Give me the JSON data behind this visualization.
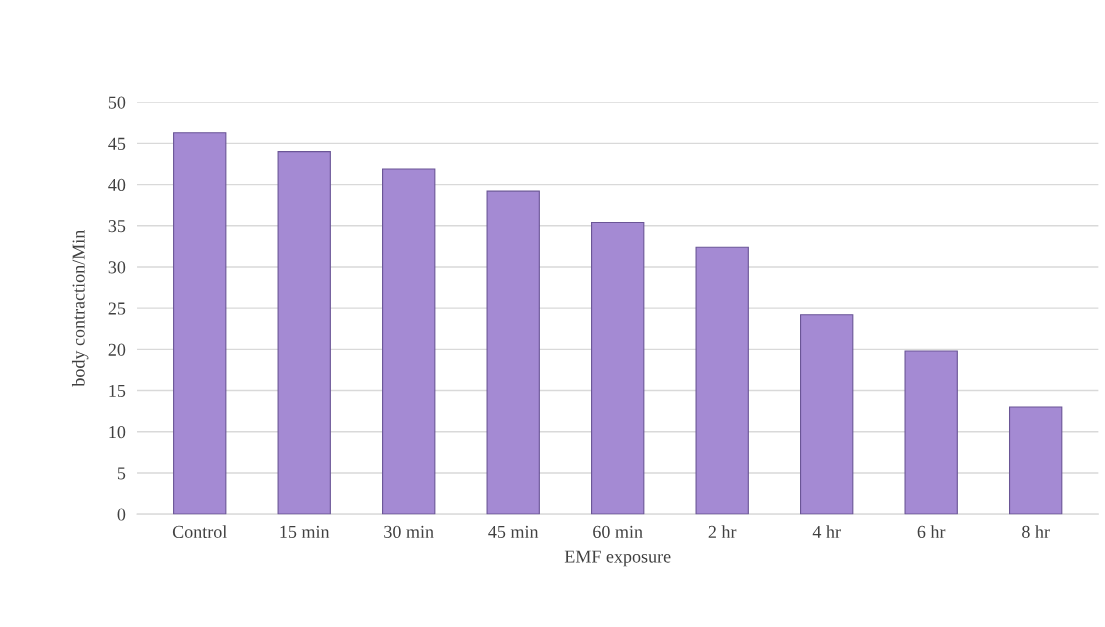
{
  "chart_data": {
    "type": "bar",
    "xlabel": "EMF exposure",
    "ylabel": "body contraction/Min",
    "categories": [
      "Control",
      "15 min",
      "30 min",
      "45 min",
      "60 min",
      "2 hr",
      "4 hr",
      "6 hr",
      "8 hr"
    ],
    "values": [
      46.3,
      44.0,
      41.9,
      39.2,
      35.4,
      32.4,
      24.2,
      19.8,
      13.0
    ],
    "color": "#a48ad3",
    "ylim": [
      0,
      50
    ],
    "yticks": [
      0,
      5,
      10,
      15,
      20,
      25,
      30,
      35,
      40,
      45,
      50
    ],
    "grid": "y"
  }
}
